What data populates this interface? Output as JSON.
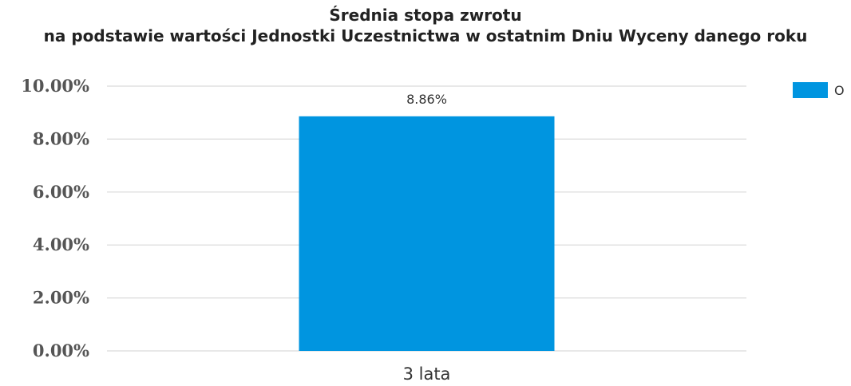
{
  "chart_data": {
    "type": "bar",
    "title": "Średnia stopa zwrotu",
    "subtitle": "na podstawie wartości Jednostki Uczestnictwa w ostatnim Dniu Wyceny danego roku",
    "categories": [
      "3 lata"
    ],
    "series": [
      {
        "name": "O",
        "values": [
          8.86
        ],
        "color": "#0095e0"
      }
    ],
    "data_labels": [
      "8.86%"
    ],
    "ylim": [
      0,
      10
    ],
    "y_ticks": [
      0,
      2,
      4,
      6,
      8,
      10
    ],
    "y_tick_labels": [
      "0.00%",
      "2.00%",
      "4.00%",
      "6.00%",
      "8.00%",
      "10.00%"
    ],
    "grid": true,
    "legend": "top-right"
  }
}
